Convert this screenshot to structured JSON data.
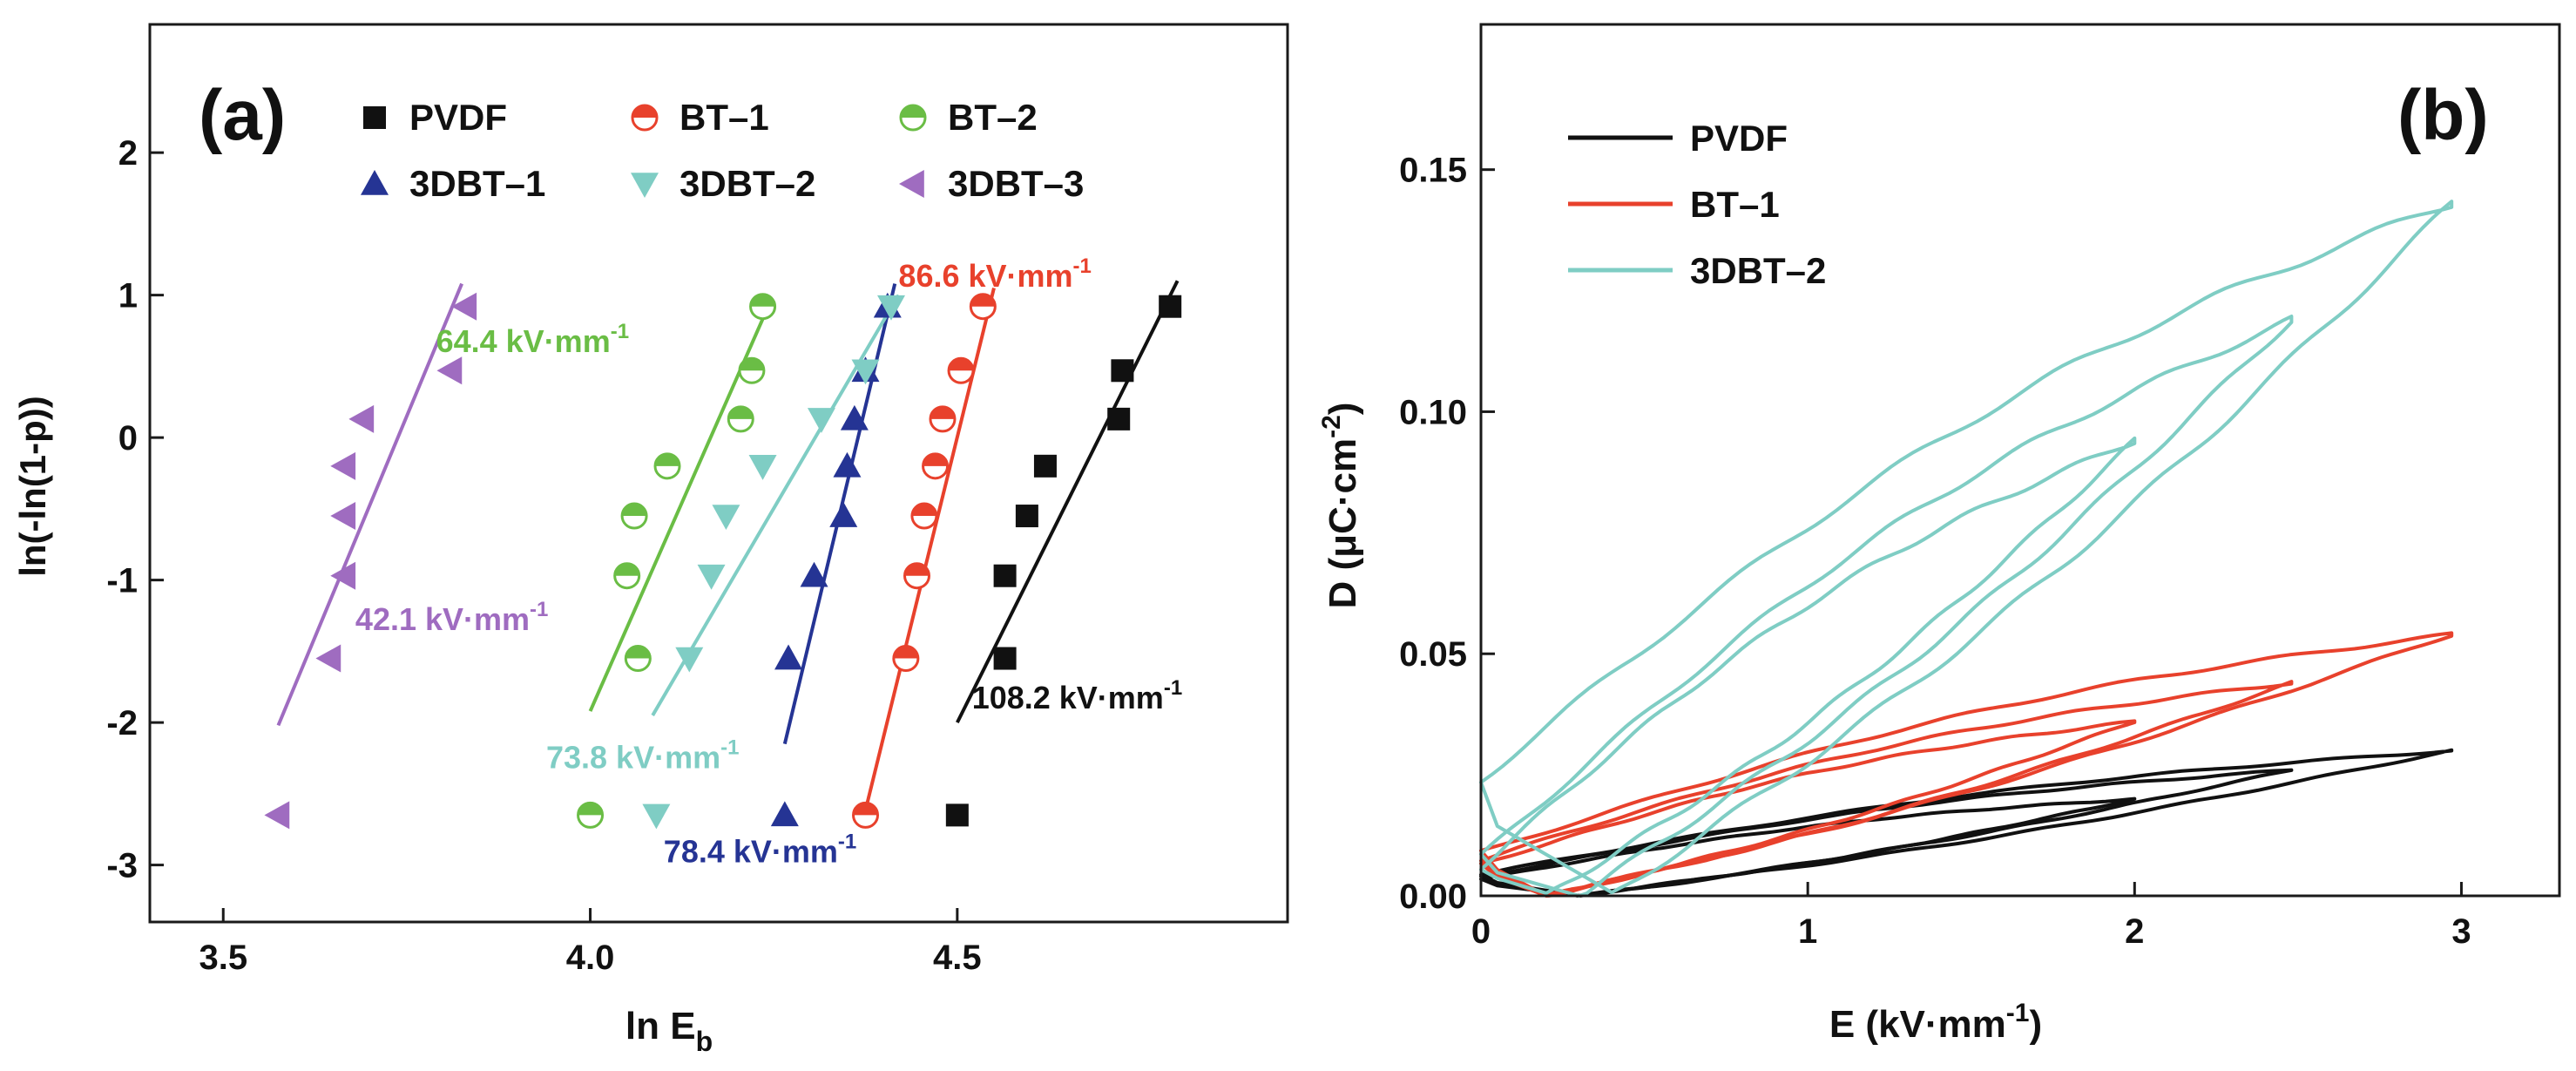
{
  "chart_data": [
    {
      "type": "scatter",
      "panel_label": "(a)",
      "xlabel_main": "ln E",
      "xlabel_sub": "b",
      "ylabel": "ln(-ln(1-p))",
      "xlim": [
        3.4,
        4.95
      ],
      "ylim": [
        -3.4,
        2.9
      ],
      "xticks": [
        3.5,
        4.0,
        4.5
      ],
      "xtick_labels": [
        "3.5",
        "4.0",
        "4.5"
      ],
      "yticks": [
        -3,
        -2,
        -1,
        0,
        1,
        2
      ],
      "ytick_labels": [
        "-3",
        "-2",
        "-1",
        "0",
        "1",
        "2"
      ],
      "series": [
        {
          "name": "PVDF",
          "marker": "square",
          "color": "#111111",
          "x": [
            4.5,
            4.565,
            4.565,
            4.595,
            4.62,
            4.72,
            4.725,
            4.79
          ],
          "y": [
            -2.65,
            -1.55,
            -0.97,
            -0.55,
            -0.2,
            0.13,
            0.47,
            0.92
          ],
          "fit": [
            [
              4.5,
              -2.0
            ],
            [
              4.8,
              1.1
            ]
          ],
          "annotation": "108.2 kV·mm",
          "annotation_sup": "-1",
          "annotation_pos": [
            4.52,
            -1.9
          ]
        },
        {
          "name": "BT–1",
          "marker": "half-circle",
          "color": "#e8412c",
          "x": [
            4.375,
            4.43,
            4.445,
            4.455,
            4.47,
            4.48,
            4.505,
            4.535
          ],
          "y": [
            -2.65,
            -1.55,
            -0.97,
            -0.55,
            -0.2,
            0.13,
            0.47,
            0.92
          ],
          "fit": [
            [
              4.37,
              -2.72
            ],
            [
              4.55,
              1.05
            ]
          ],
          "annotation": "86.6 kV·mm",
          "annotation_sup": "-1",
          "annotation_pos": [
            4.42,
            1.06
          ]
        },
        {
          "name": "BT–2",
          "marker": "half-circle",
          "color": "#6abd45",
          "x": [
            4.0,
            4.065,
            4.05,
            4.06,
            4.105,
            4.205,
            4.22,
            4.235
          ],
          "y": [
            -2.65,
            -1.55,
            -0.97,
            -0.55,
            -0.2,
            0.13,
            0.47,
            0.92
          ],
          "fit": [
            [
              4.0,
              -1.92
            ],
            [
              4.245,
              0.95
            ]
          ],
          "annotation": "64.4 kV·mm",
          "annotation_sup": "-1",
          "annotation_pos": [
            3.79,
            0.6
          ]
        },
        {
          "name": "3DBT–1",
          "marker": "triangle-up",
          "color": "#253494",
          "x": [
            4.265,
            4.27,
            4.305,
            4.345,
            4.35,
            4.36,
            4.375,
            4.405
          ],
          "y": [
            -2.65,
            -1.55,
            -0.97,
            -0.55,
            -0.2,
            0.13,
            0.47,
            0.92
          ],
          "fit": [
            [
              4.265,
              -2.15
            ],
            [
              4.415,
              1.08
            ]
          ],
          "annotation": "78.4 kV·mm",
          "annotation_sup": "-1",
          "annotation_pos": [
            4.1,
            -2.98
          ]
        },
        {
          "name": "3DBT–2",
          "marker": "triangle-down",
          "color": "#7fcdc4",
          "x": [
            4.09,
            4.135,
            4.165,
            4.185,
            4.235,
            4.315,
            4.375,
            4.41
          ],
          "y": [
            -2.65,
            -1.55,
            -0.97,
            -0.55,
            -0.2,
            0.13,
            0.47,
            0.92
          ],
          "fit": [
            [
              4.085,
              -1.95
            ],
            [
              4.42,
              1.0
            ]
          ],
          "annotation": "73.8 kV·mm",
          "annotation_sup": "-1",
          "annotation_pos": [
            3.94,
            -2.32
          ]
        },
        {
          "name": "3DBT–3",
          "marker": "triangle-left",
          "color": "#9f6cc0",
          "x": [
            3.575,
            3.645,
            3.665,
            3.665,
            3.665,
            3.69,
            3.81,
            3.83
          ],
          "y": [
            -2.65,
            -1.55,
            -0.97,
            -0.55,
            -0.2,
            0.13,
            0.47,
            0.92
          ],
          "fit": [
            [
              3.575,
              -2.02
            ],
            [
              3.825,
              1.08
            ]
          ],
          "annotation": "42.1 kV·mm",
          "annotation_sup": "-1",
          "annotation_pos": [
            3.68,
            -1.35
          ]
        }
      ]
    },
    {
      "type": "line",
      "panel_label": "(b)",
      "xlabel": "E (kV·mm",
      "xlabel_sup": "-1",
      "xlabel_end": ")",
      "ylabel": "D (μC·cm",
      "ylabel_sup": "-2",
      "ylabel_end": ")",
      "xlim": [
        0,
        3.3
      ],
      "ylim": [
        0,
        0.18
      ],
      "xticks": [
        0,
        1,
        2,
        3
      ],
      "xtick_labels": [
        "0",
        "1",
        "2",
        "3"
      ],
      "yticks": [
        0.0,
        0.05,
        0.1,
        0.15
      ],
      "ytick_labels": [
        "0.00",
        "0.05",
        "0.10",
        "0.15"
      ],
      "series": [
        {
          "name": "PVDF",
          "color": "#111111",
          "loops": [
            {
              "emax": 2.0,
              "dmax": 0.02,
              "upper0": 0.0035,
              "lower0": 0.0,
              "lowerEnd": 0.3,
              "bulge": 0.0025
            },
            {
              "emax": 2.48,
              "dmax": 0.026,
              "upper0": 0.004,
              "lower0": 0.0,
              "lowerEnd": 0.3,
              "bulge": 0.003
            },
            {
              "emax": 2.97,
              "dmax": 0.03,
              "upper0": 0.0045,
              "lower0": 0.0,
              "lowerEnd": 0.3,
              "bulge": 0.0035
            }
          ]
        },
        {
          "name": "BT–1",
          "color": "#e8412c",
          "loops": [
            {
              "emax": 2.0,
              "dmax": 0.036,
              "upper0": 0.0065,
              "lower0": 0.0,
              "lowerEnd": 0.2,
              "bulge": 0.004
            },
            {
              "emax": 2.48,
              "dmax": 0.044,
              "upper0": 0.0075,
              "lower0": 0.0,
              "lowerEnd": 0.2,
              "bulge": 0.005
            },
            {
              "emax": 2.97,
              "dmax": 0.054,
              "upper0": 0.009,
              "lower0": 0.0,
              "lowerEnd": 0.2,
              "bulge": 0.006
            }
          ]
        },
        {
          "name": "3DBT–2",
          "color": "#7fcdc4",
          "loops": [
            {
              "emax": 2.0,
              "dmax": 0.094,
              "upper0": 0.006,
              "lower0": 0.0,
              "lowerEnd": 0.2,
              "bulge": 0.01
            },
            {
              "emax": 2.48,
              "dmax": 0.119,
              "upper0": 0.008,
              "lower0": 0.0,
              "lowerEnd": 0.3,
              "bulge": 0.012
            },
            {
              "emax": 2.97,
              "dmax": 0.143,
              "upper0": 0.024,
              "lower0": 0.0,
              "lowerEnd": 0.4,
              "bulge": 0.014
            }
          ]
        }
      ]
    }
  ]
}
